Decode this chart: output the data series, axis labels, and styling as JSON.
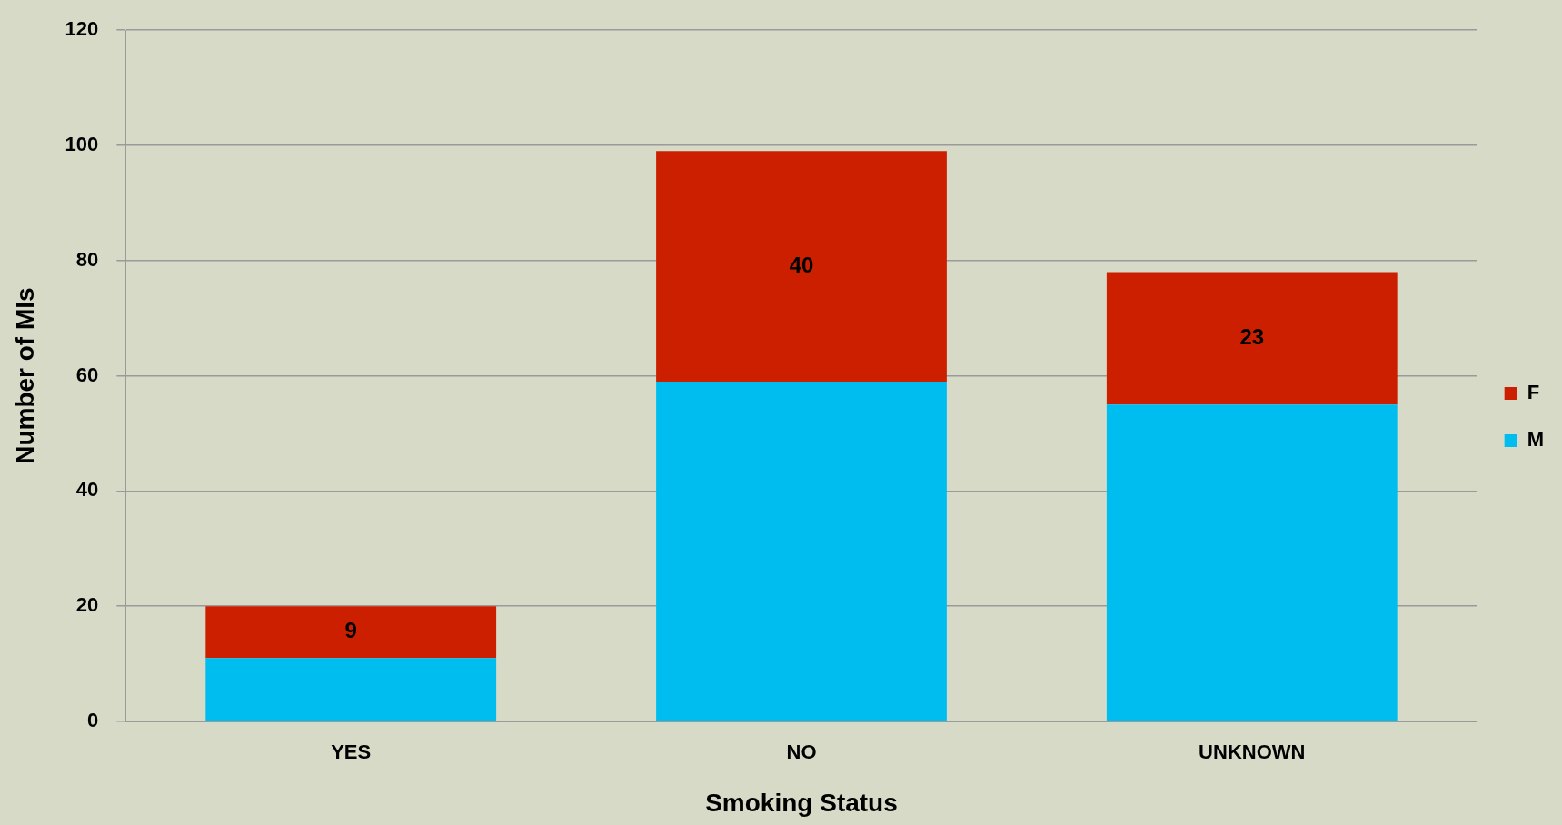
{
  "chart_data": {
    "type": "bar",
    "xlabel": "Smoking Status",
    "ylabel": "Number of MIs",
    "categories": [
      "YES",
      "NO",
      "UNKNOWN"
    ],
    "stacked": true,
    "series": [
      {
        "name": "M",
        "color": "#00bdf0",
        "values": [
          11,
          59,
          55
        ]
      },
      {
        "name": "F",
        "color": "#cc1f00",
        "values": [
          9,
          40,
          23
        ],
        "value_labels": [
          "9",
          "40",
          "23"
        ]
      }
    ],
    "ylim": [
      0,
      120
    ],
    "yticks": [
      0,
      20,
      40,
      60,
      80,
      100,
      120
    ],
    "grid": "y",
    "legend": "right"
  }
}
